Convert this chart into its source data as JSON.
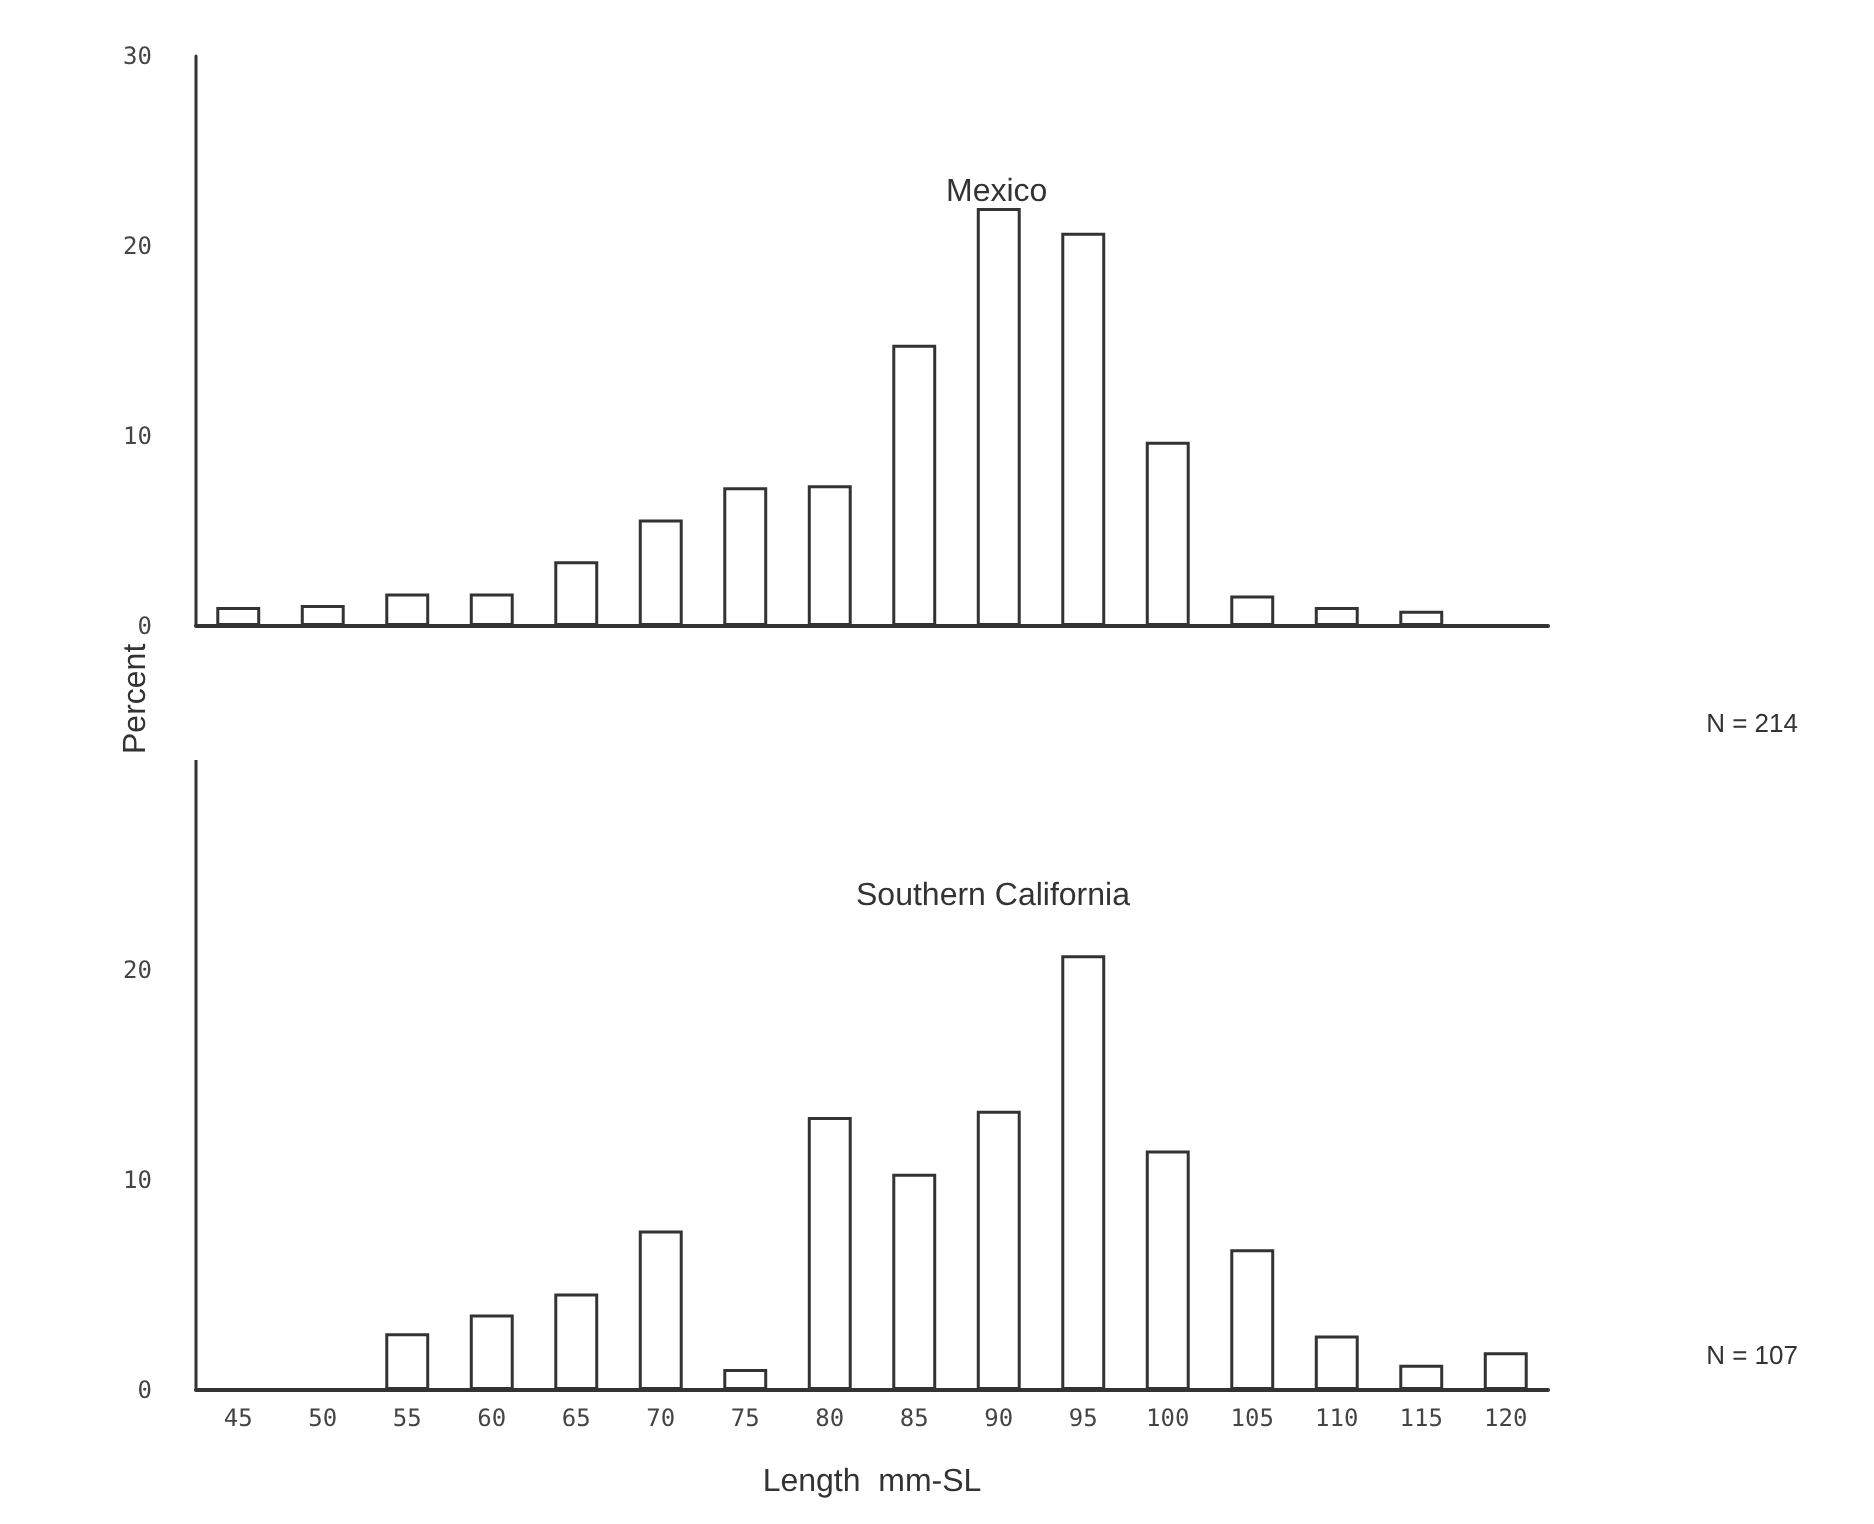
{
  "chart_data": [
    {
      "type": "bar",
      "title": "Mexico",
      "ylabel": "Percent",
      "annotations": [
        "N = 214"
      ],
      "categories": [
        "45",
        "50",
        "55",
        "60",
        "65",
        "70",
        "75",
        "80",
        "85",
        "90",
        "95",
        "100",
        "105",
        "110",
        "115",
        "120"
      ],
      "values": [
        1.0,
        1.1,
        1.7,
        1.7,
        3.4,
        5.6,
        7.3,
        7.4,
        14.8,
        22.0,
        20.7,
        9.7,
        1.6,
        1.0,
        0.8,
        null
      ],
      "color": "#ffffff",
      "ylim": [
        0,
        30
      ],
      "yticks": [
        0,
        10,
        20,
        30
      ],
      "grid": false,
      "tick_labels": "y"
    },
    {
      "type": "bar",
      "title": "Southern California",
      "xlabel": "Length  mm-SL",
      "annotations": [
        "N = 107"
      ],
      "categories": [
        "45",
        "50",
        "55",
        "60",
        "65",
        "70",
        "75",
        "80",
        "85",
        "90",
        "95",
        "100",
        "105",
        "110",
        "115",
        "120"
      ],
      "values": [
        null,
        null,
        2.7,
        3.6,
        4.6,
        7.6,
        1.0,
        13.0,
        10.3,
        13.3,
        20.7,
        11.4,
        6.7,
        2.6,
        1.2,
        1.8
      ],
      "color": "#ffffff",
      "ylim": [
        0,
        30
      ],
      "yticks": [
        0,
        10,
        20
      ],
      "grid": false
    }
  ]
}
